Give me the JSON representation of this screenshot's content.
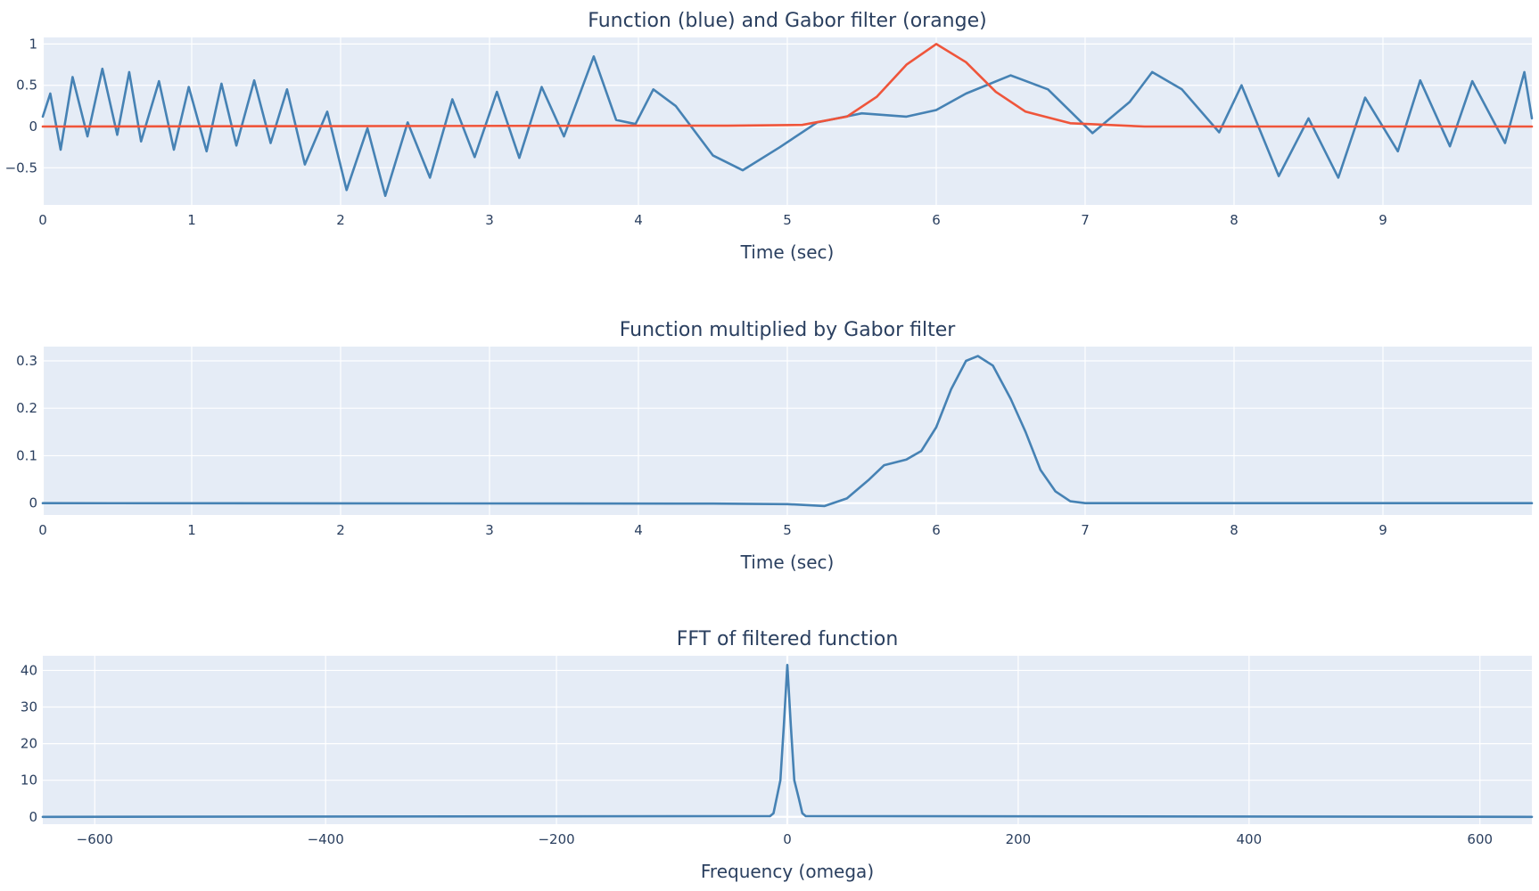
{
  "chart_data": [
    {
      "type": "line",
      "title": "Function (blue) and Gabor filter (orange)",
      "xlabel": "Time (sec)",
      "ylabel": "",
      "xlim": [
        0,
        10
      ],
      "ylim": [
        -0.95,
        1.08
      ],
      "x_ticks": [
        0,
        1,
        2,
        3,
        4,
        5,
        6,
        7,
        8,
        9
      ],
      "x_tick_labels": [
        "0",
        "1",
        "2",
        "3",
        "4",
        "5",
        "6",
        "7",
        "8",
        "9"
      ],
      "y_ticks": [
        -0.5,
        0,
        0.5,
        1
      ],
      "y_tick_labels": [
        "−0.5",
        "0",
        "0.5",
        "1"
      ],
      "grid": true,
      "series": [
        {
          "color": "#4682b4",
          "x": [
            0,
            0.05,
            0.12,
            0.2,
            0.3,
            0.4,
            0.5,
            0.58,
            0.66,
            0.78,
            0.88,
            0.98,
            1.1,
            1.2,
            1.3,
            1.42,
            1.53,
            1.64,
            1.76,
            1.91,
            2.04,
            2.18,
            2.3,
            2.45,
            2.6,
            2.75,
            2.9,
            3.05,
            3.2,
            3.35,
            3.5,
            3.7,
            3.85,
            3.98,
            4.1,
            4.25,
            4.5,
            4.7,
            4.95,
            5.2,
            5.5,
            5.8,
            6.0,
            6.2,
            6.5,
            6.75,
            7.05,
            7.3,
            7.45,
            7.65,
            7.9,
            8.05,
            8.3,
            8.5,
            8.7,
            8.88,
            9.1,
            9.25,
            9.45,
            9.6,
            9.82,
            9.95,
            10
          ],
          "y": [
            0.12,
            0.4,
            -0.28,
            0.6,
            -0.12,
            0.7,
            -0.1,
            0.66,
            -0.18,
            0.55,
            -0.28,
            0.48,
            -0.3,
            0.52,
            -0.23,
            0.56,
            -0.2,
            0.45,
            -0.46,
            0.18,
            -0.77,
            -0.02,
            -0.84,
            0.05,
            -0.62,
            0.33,
            -0.37,
            0.42,
            -0.38,
            0.48,
            -0.12,
            0.85,
            0.08,
            0.03,
            0.45,
            0.25,
            -0.35,
            -0.53,
            -0.25,
            0.05,
            0.16,
            0.12,
            0.2,
            0.4,
            0.62,
            0.45,
            -0.08,
            0.3,
            0.66,
            0.45,
            -0.07,
            0.5,
            -0.6,
            0.1,
            -0.62,
            0.35,
            -0.3,
            0.56,
            -0.24,
            0.55,
            -0.2,
            0.66,
            0.1
          ]
        },
        {
          "color": "#ef553b",
          "x": [
            0,
            4,
            4.6,
            5.1,
            5.4,
            5.6,
            5.8,
            6.0,
            6.2,
            6.4,
            6.6,
            6.9,
            7.4,
            10
          ],
          "y": [
            0,
            0.01,
            0.01,
            0.02,
            0.12,
            0.36,
            0.75,
            1.0,
            0.78,
            0.42,
            0.18,
            0.04,
            0.0,
            0
          ]
        }
      ]
    },
    {
      "type": "line",
      "title": "Function multiplied by Gabor filter",
      "xlabel": "Time (sec)",
      "ylabel": "",
      "xlim": [
        0,
        10
      ],
      "ylim": [
        -0.025,
        0.33
      ],
      "x_ticks": [
        0,
        1,
        2,
        3,
        4,
        5,
        6,
        7,
        8,
        9
      ],
      "x_tick_labels": [
        "0",
        "1",
        "2",
        "3",
        "4",
        "5",
        "6",
        "7",
        "8",
        "9"
      ],
      "y_ticks": [
        0,
        0.1,
        0.2,
        0.3
      ],
      "y_tick_labels": [
        "0",
        "0.1",
        "0.2",
        "0.3"
      ],
      "grid": true,
      "series": [
        {
          "color": "#4682b4",
          "x": [
            0,
            4.5,
            5.0,
            5.25,
            5.4,
            5.55,
            5.65,
            5.8,
            5.9,
            6.0,
            6.1,
            6.2,
            6.28,
            6.38,
            6.5,
            6.6,
            6.7,
            6.8,
            6.9,
            7.0,
            10
          ],
          "y": [
            0,
            -0.001,
            -0.002,
            -0.006,
            0.01,
            0.05,
            0.08,
            0.092,
            0.11,
            0.16,
            0.24,
            0.3,
            0.31,
            0.29,
            0.22,
            0.15,
            0.07,
            0.025,
            0.004,
            0,
            0
          ]
        }
      ]
    },
    {
      "type": "line",
      "title": "FFT of filtered function",
      "xlabel": "Frequency (omega)",
      "ylabel": "",
      "xlim": [
        -645,
        645
      ],
      "ylim": [
        -2,
        44
      ],
      "x_ticks": [
        -600,
        -400,
        -200,
        0,
        200,
        400,
        600
      ],
      "x_tick_labels": [
        "−600",
        "−400",
        "−200",
        "0",
        "200",
        "400",
        "600"
      ],
      "y_ticks": [
        0,
        10,
        20,
        30,
        40
      ],
      "y_tick_labels": [
        "0",
        "10",
        "20",
        "30",
        "40"
      ],
      "grid": true,
      "series": [
        {
          "color": "#4682b4",
          "x": [
            -645,
            -15,
            -12,
            -6,
            -3,
            0,
            3,
            6,
            10,
            13,
            16,
            645
          ],
          "y": [
            0,
            0.2,
            1,
            10,
            25,
            41.5,
            25,
            10,
            5,
            1,
            0.2,
            0
          ]
        }
      ]
    }
  ]
}
